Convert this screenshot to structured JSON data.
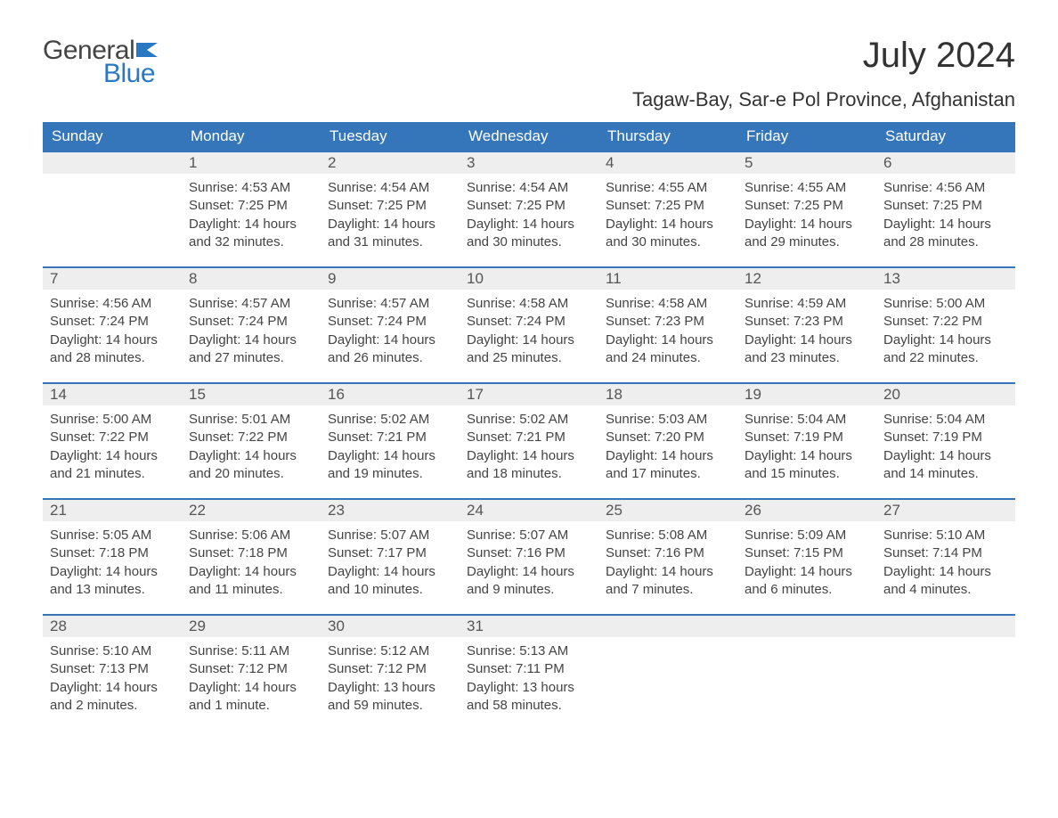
{
  "logo": {
    "top": "General",
    "bottom": "Blue",
    "flag_color": "#2a78c2"
  },
  "title": "July 2024",
  "location": "Tagaw-Bay, Sar-e Pol Province, Afghanistan",
  "day_headers": [
    "Sunday",
    "Monday",
    "Tuesday",
    "Wednesday",
    "Thursday",
    "Friday",
    "Saturday"
  ],
  "header_bg": "#3576ba",
  "header_fg": "#ffffff",
  "daynum_bg": "#eeeeee",
  "week_border": "#3576ba",
  "weeks": [
    [
      {
        "num": "",
        "sunrise": "",
        "sunset": "",
        "daylight1": "",
        "daylight2": ""
      },
      {
        "num": "1",
        "sunrise": "Sunrise: 4:53 AM",
        "sunset": "Sunset: 7:25 PM",
        "daylight1": "Daylight: 14 hours",
        "daylight2": "and 32 minutes."
      },
      {
        "num": "2",
        "sunrise": "Sunrise: 4:54 AM",
        "sunset": "Sunset: 7:25 PM",
        "daylight1": "Daylight: 14 hours",
        "daylight2": "and 31 minutes."
      },
      {
        "num": "3",
        "sunrise": "Sunrise: 4:54 AM",
        "sunset": "Sunset: 7:25 PM",
        "daylight1": "Daylight: 14 hours",
        "daylight2": "and 30 minutes."
      },
      {
        "num": "4",
        "sunrise": "Sunrise: 4:55 AM",
        "sunset": "Sunset: 7:25 PM",
        "daylight1": "Daylight: 14 hours",
        "daylight2": "and 30 minutes."
      },
      {
        "num": "5",
        "sunrise": "Sunrise: 4:55 AM",
        "sunset": "Sunset: 7:25 PM",
        "daylight1": "Daylight: 14 hours",
        "daylight2": "and 29 minutes."
      },
      {
        "num": "6",
        "sunrise": "Sunrise: 4:56 AM",
        "sunset": "Sunset: 7:25 PM",
        "daylight1": "Daylight: 14 hours",
        "daylight2": "and 28 minutes."
      }
    ],
    [
      {
        "num": "7",
        "sunrise": "Sunrise: 4:56 AM",
        "sunset": "Sunset: 7:24 PM",
        "daylight1": "Daylight: 14 hours",
        "daylight2": "and 28 minutes."
      },
      {
        "num": "8",
        "sunrise": "Sunrise: 4:57 AM",
        "sunset": "Sunset: 7:24 PM",
        "daylight1": "Daylight: 14 hours",
        "daylight2": "and 27 minutes."
      },
      {
        "num": "9",
        "sunrise": "Sunrise: 4:57 AM",
        "sunset": "Sunset: 7:24 PM",
        "daylight1": "Daylight: 14 hours",
        "daylight2": "and 26 minutes."
      },
      {
        "num": "10",
        "sunrise": "Sunrise: 4:58 AM",
        "sunset": "Sunset: 7:24 PM",
        "daylight1": "Daylight: 14 hours",
        "daylight2": "and 25 minutes."
      },
      {
        "num": "11",
        "sunrise": "Sunrise: 4:58 AM",
        "sunset": "Sunset: 7:23 PM",
        "daylight1": "Daylight: 14 hours",
        "daylight2": "and 24 minutes."
      },
      {
        "num": "12",
        "sunrise": "Sunrise: 4:59 AM",
        "sunset": "Sunset: 7:23 PM",
        "daylight1": "Daylight: 14 hours",
        "daylight2": "and 23 minutes."
      },
      {
        "num": "13",
        "sunrise": "Sunrise: 5:00 AM",
        "sunset": "Sunset: 7:22 PM",
        "daylight1": "Daylight: 14 hours",
        "daylight2": "and 22 minutes."
      }
    ],
    [
      {
        "num": "14",
        "sunrise": "Sunrise: 5:00 AM",
        "sunset": "Sunset: 7:22 PM",
        "daylight1": "Daylight: 14 hours",
        "daylight2": "and 21 minutes."
      },
      {
        "num": "15",
        "sunrise": "Sunrise: 5:01 AM",
        "sunset": "Sunset: 7:22 PM",
        "daylight1": "Daylight: 14 hours",
        "daylight2": "and 20 minutes."
      },
      {
        "num": "16",
        "sunrise": "Sunrise: 5:02 AM",
        "sunset": "Sunset: 7:21 PM",
        "daylight1": "Daylight: 14 hours",
        "daylight2": "and 19 minutes."
      },
      {
        "num": "17",
        "sunrise": "Sunrise: 5:02 AM",
        "sunset": "Sunset: 7:21 PM",
        "daylight1": "Daylight: 14 hours",
        "daylight2": "and 18 minutes."
      },
      {
        "num": "18",
        "sunrise": "Sunrise: 5:03 AM",
        "sunset": "Sunset: 7:20 PM",
        "daylight1": "Daylight: 14 hours",
        "daylight2": "and 17 minutes."
      },
      {
        "num": "19",
        "sunrise": "Sunrise: 5:04 AM",
        "sunset": "Sunset: 7:19 PM",
        "daylight1": "Daylight: 14 hours",
        "daylight2": "and 15 minutes."
      },
      {
        "num": "20",
        "sunrise": "Sunrise: 5:04 AM",
        "sunset": "Sunset: 7:19 PM",
        "daylight1": "Daylight: 14 hours",
        "daylight2": "and 14 minutes."
      }
    ],
    [
      {
        "num": "21",
        "sunrise": "Sunrise: 5:05 AM",
        "sunset": "Sunset: 7:18 PM",
        "daylight1": "Daylight: 14 hours",
        "daylight2": "and 13 minutes."
      },
      {
        "num": "22",
        "sunrise": "Sunrise: 5:06 AM",
        "sunset": "Sunset: 7:18 PM",
        "daylight1": "Daylight: 14 hours",
        "daylight2": "and 11 minutes."
      },
      {
        "num": "23",
        "sunrise": "Sunrise: 5:07 AM",
        "sunset": "Sunset: 7:17 PM",
        "daylight1": "Daylight: 14 hours",
        "daylight2": "and 10 minutes."
      },
      {
        "num": "24",
        "sunrise": "Sunrise: 5:07 AM",
        "sunset": "Sunset: 7:16 PM",
        "daylight1": "Daylight: 14 hours",
        "daylight2": "and 9 minutes."
      },
      {
        "num": "25",
        "sunrise": "Sunrise: 5:08 AM",
        "sunset": "Sunset: 7:16 PM",
        "daylight1": "Daylight: 14 hours",
        "daylight2": "and 7 minutes."
      },
      {
        "num": "26",
        "sunrise": "Sunrise: 5:09 AM",
        "sunset": "Sunset: 7:15 PM",
        "daylight1": "Daylight: 14 hours",
        "daylight2": "and 6 minutes."
      },
      {
        "num": "27",
        "sunrise": "Sunrise: 5:10 AM",
        "sunset": "Sunset: 7:14 PM",
        "daylight1": "Daylight: 14 hours",
        "daylight2": "and 4 minutes."
      }
    ],
    [
      {
        "num": "28",
        "sunrise": "Sunrise: 5:10 AM",
        "sunset": "Sunset: 7:13 PM",
        "daylight1": "Daylight: 14 hours",
        "daylight2": "and 2 minutes."
      },
      {
        "num": "29",
        "sunrise": "Sunrise: 5:11 AM",
        "sunset": "Sunset: 7:12 PM",
        "daylight1": "Daylight: 14 hours",
        "daylight2": "and 1 minute."
      },
      {
        "num": "30",
        "sunrise": "Sunrise: 5:12 AM",
        "sunset": "Sunset: 7:12 PM",
        "daylight1": "Daylight: 13 hours",
        "daylight2": "and 59 minutes."
      },
      {
        "num": "31",
        "sunrise": "Sunrise: 5:13 AM",
        "sunset": "Sunset: 7:11 PM",
        "daylight1": "Daylight: 13 hours",
        "daylight2": "and 58 minutes."
      },
      {
        "num": "",
        "sunrise": "",
        "sunset": "",
        "daylight1": "",
        "daylight2": ""
      },
      {
        "num": "",
        "sunrise": "",
        "sunset": "",
        "daylight1": "",
        "daylight2": ""
      },
      {
        "num": "",
        "sunrise": "",
        "sunset": "",
        "daylight1": "",
        "daylight2": ""
      }
    ]
  ]
}
